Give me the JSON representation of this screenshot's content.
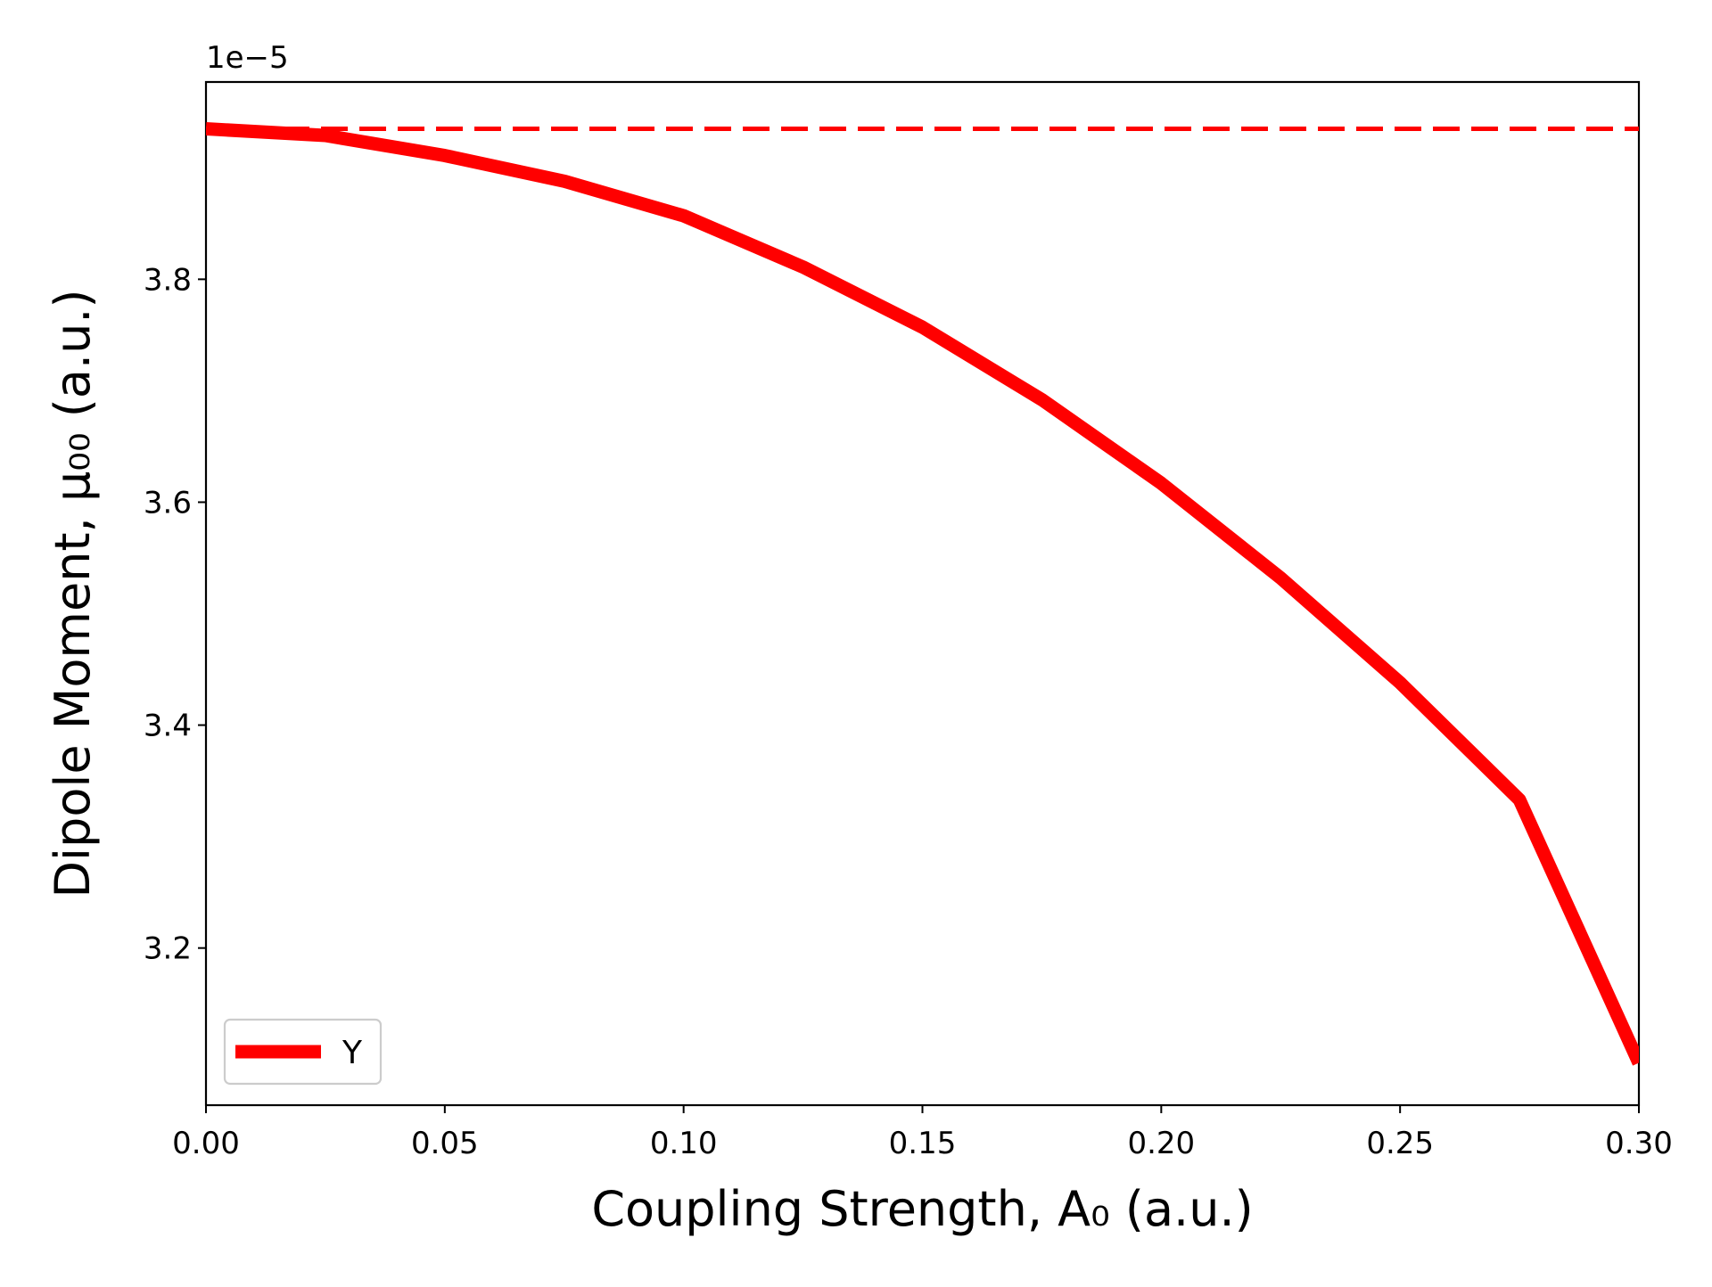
{
  "chart_data": {
    "type": "line",
    "xlabel": "Coupling Strength, A₀ (a.u.)",
    "ylabel": "Dipole Moment, μ₀₀ (a.u.)",
    "y_offset_text": "1e−5",
    "xlim": [
      0.0,
      0.3
    ],
    "ylim": [
      3.059,
      3.977
    ],
    "x_ticks": [
      0.0,
      0.05,
      0.1,
      0.15,
      0.2,
      0.25,
      0.3
    ],
    "x_tick_labels": [
      "0.00",
      "0.05",
      "0.10",
      "0.15",
      "0.20",
      "0.25",
      "0.30"
    ],
    "y_ticks": [
      3.2,
      3.4,
      3.6,
      3.8
    ],
    "y_tick_labels": [
      "3.2",
      "3.4",
      "3.6",
      "3.8"
    ],
    "grid": false,
    "legend_position": "lower-left",
    "series": [
      {
        "name": "Y",
        "style": "solid",
        "color": "#ff0000",
        "x": [
          0.0,
          0.025,
          0.05,
          0.075,
          0.1,
          0.125,
          0.15,
          0.175,
          0.2,
          0.225,
          0.25,
          0.275,
          0.3
        ],
        "y": [
          3.935,
          3.929,
          3.911,
          3.888,
          3.857,
          3.811,
          3.757,
          3.692,
          3.617,
          3.532,
          3.438,
          3.333,
          3.097
        ]
      },
      {
        "style": "dashed",
        "color": "#ff0000",
        "x": [
          0.0,
          0.3
        ],
        "y": [
          3.935,
          3.935
        ]
      }
    ]
  }
}
